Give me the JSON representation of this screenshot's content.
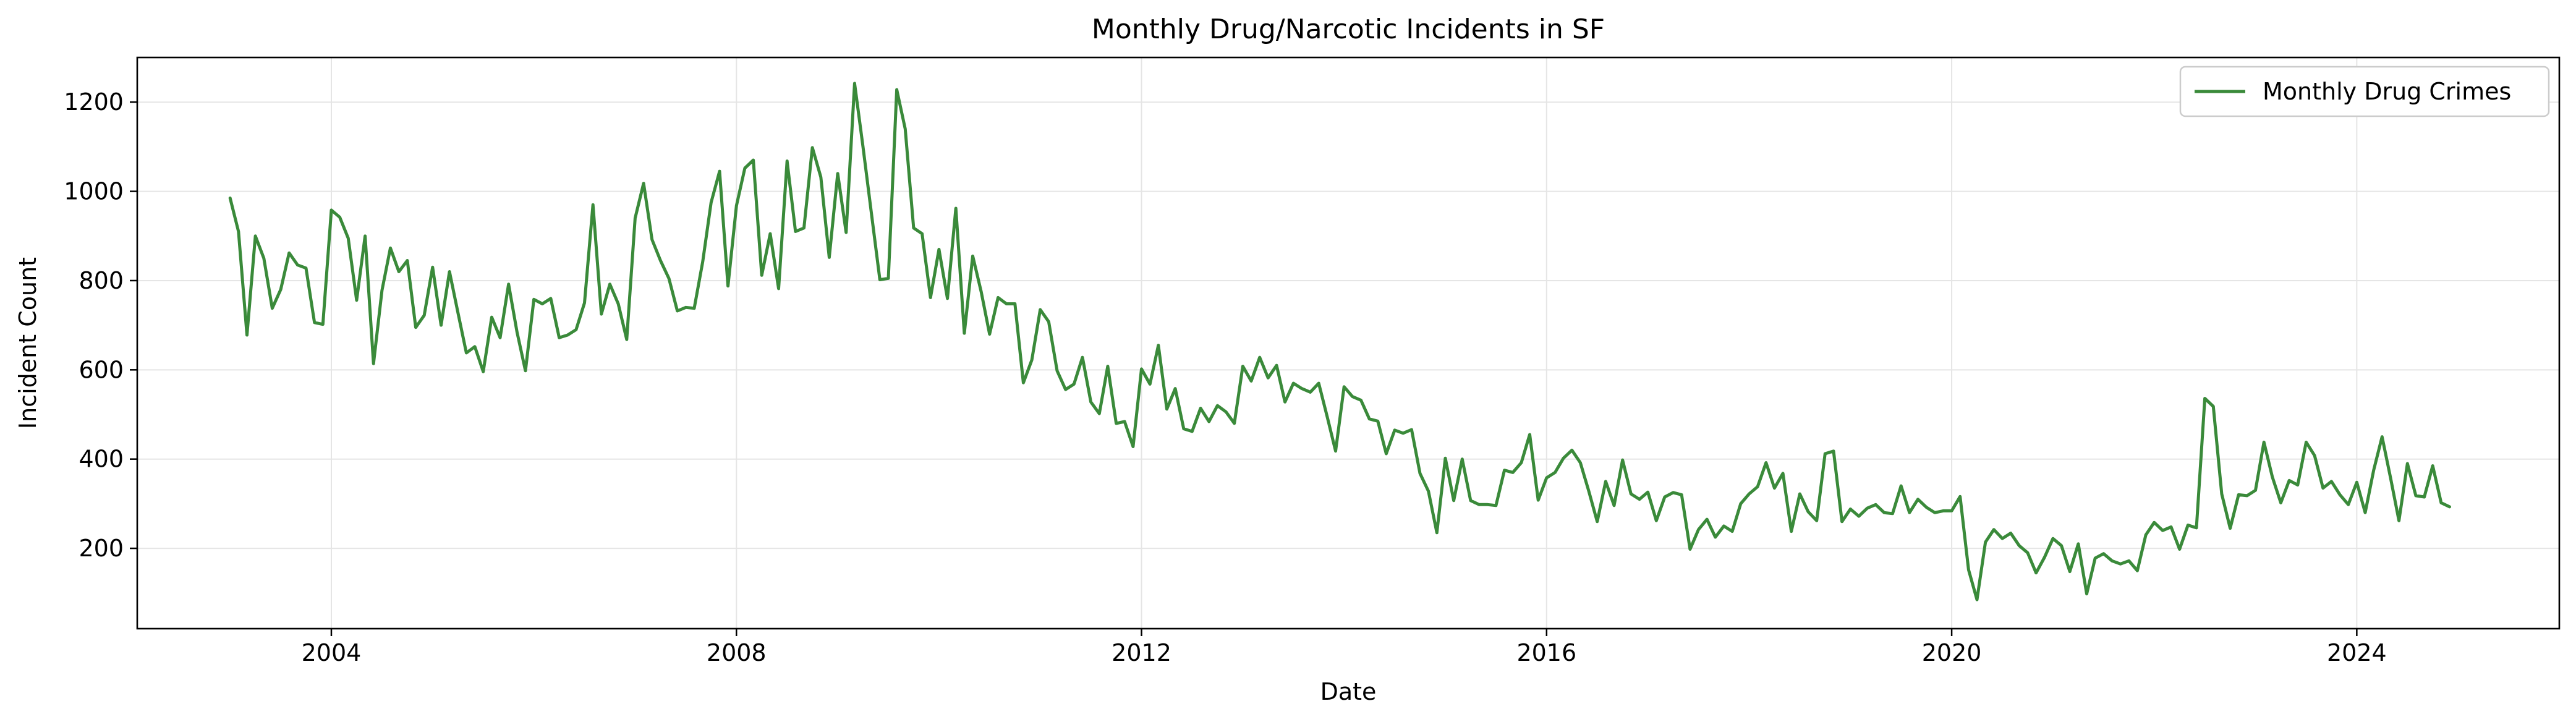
{
  "chart_data": {
    "type": "line",
    "title": "Monthly Drug/Narcotic Incidents in SF",
    "xlabel": "Date",
    "ylabel": "Incident Count",
    "xlim": [
      "2002-02-01",
      "2026-01-01"
    ],
    "ylim": [
      20,
      1300
    ],
    "x_ticks": [
      "2004",
      "2008",
      "2012",
      "2016",
      "2020",
      "2024"
    ],
    "y_ticks": [
      200,
      400,
      600,
      800,
      1000,
      1200
    ],
    "grid": true,
    "legend": "top-right",
    "colors": {
      "line": "#3a8a3a",
      "axes": "#000000",
      "grid": "#e5e5e5"
    },
    "series": [
      {
        "name": "Monthly Drug Crimes",
        "x": [
          "2003-01",
          "2003-02",
          "2003-03",
          "2003-04",
          "2003-05",
          "2003-06",
          "2003-07",
          "2003-08",
          "2003-09",
          "2003-10",
          "2003-11",
          "2003-12",
          "2004-01",
          "2004-02",
          "2004-03",
          "2004-04",
          "2004-05",
          "2004-06",
          "2004-07",
          "2004-08",
          "2004-09",
          "2004-10",
          "2004-11",
          "2004-12",
          "2005-01",
          "2005-02",
          "2005-03",
          "2005-04",
          "2005-05",
          "2005-06",
          "2005-07",
          "2005-08",
          "2005-09",
          "2005-10",
          "2005-11",
          "2005-12",
          "2006-01",
          "2006-02",
          "2006-03",
          "2006-04",
          "2006-05",
          "2006-06",
          "2006-07",
          "2006-08",
          "2006-09",
          "2006-10",
          "2006-11",
          "2006-12",
          "2007-01",
          "2007-02",
          "2007-03",
          "2007-04",
          "2007-05",
          "2007-06",
          "2007-07",
          "2007-08",
          "2007-09",
          "2007-10",
          "2007-11",
          "2007-12",
          "2008-01",
          "2008-02",
          "2008-03",
          "2008-04",
          "2008-05",
          "2008-06",
          "2008-07",
          "2008-08",
          "2008-09",
          "2008-10",
          "2008-11",
          "2008-12",
          "2009-01",
          "2009-02",
          "2009-03",
          "2009-04",
          "2009-05",
          "2009-06",
          "2009-07",
          "2009-08",
          "2009-09",
          "2009-10",
          "2009-11",
          "2009-12",
          "2010-01",
          "2010-02",
          "2010-03",
          "2010-04",
          "2010-05",
          "2010-06",
          "2010-07",
          "2010-08",
          "2010-09",
          "2010-10",
          "2010-11",
          "2010-12",
          "2011-01",
          "2011-02",
          "2011-03",
          "2011-04",
          "2011-05",
          "2011-06",
          "2011-07",
          "2011-08",
          "2011-09",
          "2011-10",
          "2011-11",
          "2011-12",
          "2012-01",
          "2012-02",
          "2012-03",
          "2012-04",
          "2012-05",
          "2012-06",
          "2012-07",
          "2012-08",
          "2012-09",
          "2012-10",
          "2012-11",
          "2012-12",
          "2013-01",
          "2013-02",
          "2013-03",
          "2013-04",
          "2013-05",
          "2013-06",
          "2013-07",
          "2013-08",
          "2013-09",
          "2013-10",
          "2013-11",
          "2013-12",
          "2014-01",
          "2014-02",
          "2014-03",
          "2014-04",
          "2014-05",
          "2014-06",
          "2014-07",
          "2014-08",
          "2014-09",
          "2014-10",
          "2014-11",
          "2014-12",
          "2015-01",
          "2015-02",
          "2015-03",
          "2015-04",
          "2015-05",
          "2015-06",
          "2015-07",
          "2015-08",
          "2015-09",
          "2015-10",
          "2015-11",
          "2015-12",
          "2016-01",
          "2016-02",
          "2016-03",
          "2016-04",
          "2016-05",
          "2016-06",
          "2016-07",
          "2016-08",
          "2016-09",
          "2016-10",
          "2016-11",
          "2016-12",
          "2017-01",
          "2017-02",
          "2017-03",
          "2017-04",
          "2017-05",
          "2017-06",
          "2017-07",
          "2017-08",
          "2017-09",
          "2017-10",
          "2017-11",
          "2017-12",
          "2018-01",
          "2018-02",
          "2018-03",
          "2018-04",
          "2018-05",
          "2018-06",
          "2018-07",
          "2018-08",
          "2018-09",
          "2018-10",
          "2018-11",
          "2018-12",
          "2019-01",
          "2019-02",
          "2019-03",
          "2019-04",
          "2019-05",
          "2019-06",
          "2019-07",
          "2019-08",
          "2019-09",
          "2019-10",
          "2019-11",
          "2019-12",
          "2020-01",
          "2020-02",
          "2020-03",
          "2020-04",
          "2020-05",
          "2020-06",
          "2020-07",
          "2020-08",
          "2020-09",
          "2020-10",
          "2020-11",
          "2020-12",
          "2021-01",
          "2021-02",
          "2021-03",
          "2021-04",
          "2021-05",
          "2021-06",
          "2021-07",
          "2021-08",
          "2021-09",
          "2021-10",
          "2021-11",
          "2021-12",
          "2022-01",
          "2022-02",
          "2022-03",
          "2022-04",
          "2022-05",
          "2022-06",
          "2022-07",
          "2022-08",
          "2022-09",
          "2022-10",
          "2022-11",
          "2022-12",
          "2023-01",
          "2023-02",
          "2023-03",
          "2023-04",
          "2023-05",
          "2023-06",
          "2023-07",
          "2023-08",
          "2023-09",
          "2023-10",
          "2023-11",
          "2023-12",
          "2024-01",
          "2024-02",
          "2024-03",
          "2024-04",
          "2024-05",
          "2024-06",
          "2024-07",
          "2024-08",
          "2024-09",
          "2024-10",
          "2024-11",
          "2024-12"
        ],
        "values": [
          985,
          910,
          678,
          900,
          850,
          738,
          780,
          862,
          835,
          828,
          706,
          702,
          958,
          942,
          895,
          756,
          900,
          614,
          778,
          873,
          820,
          845,
          695,
          722,
          830,
          700,
          820,
          728,
          638,
          652,
          596,
          718,
          672,
          792,
          685,
          598,
          758,
          748,
          760,
          672,
          678,
          690,
          750,
          970,
          725,
          792,
          748,
          668,
          940,
          1018,
          892,
          845,
          805,
          732,
          740,
          738,
          842,
          975,
          1045,
          788,
          968,
          1052,
          1070,
          812,
          905,
          782,
          1068,
          910,
          918,
          1098,
          1032,
          852,
          1040,
          908,
          1242,
          1100,
          950,
          802,
          805,
          1228,
          1140,
          918,
          905,
          762,
          870,
          760,
          962,
          682,
          855,
          775,
          680,
          762,
          748,
          748,
          571,
          622,
          735,
          708,
          598,
          556,
          568,
          628,
          528,
          502,
          608,
          480,
          484,
          428,
          602,
          568,
          655,
          512,
          558,
          468,
          462,
          514,
          484,
          520,
          506,
          480,
          608,
          575,
          628,
          582,
          610,
          528,
          570,
          558,
          550,
          570,
          495,
          418,
          562,
          540,
          532,
          490,
          485,
          412,
          465,
          458,
          466,
          368,
          328,
          235,
          402,
          307,
          400,
          307,
          298,
          298,
          296,
          375,
          370,
          392,
          455,
          308,
          358,
          370,
          402,
          420,
          392,
          328,
          260,
          350,
          296,
          398,
          322,
          310,
          326,
          262,
          315,
          325,
          320,
          198,
          242,
          265,
          225,
          250,
          238,
          300,
          322,
          338,
          392,
          335,
          368,
          238,
          322,
          282,
          262,
          412,
          418,
          260,
          288,
          272,
          290,
          298,
          280,
          278,
          340,
          280,
          310,
          292,
          280,
          284,
          284,
          316,
          152,
          85,
          214,
          242,
          222,
          234,
          206,
          190,
          145,
          180,
          222,
          206,
          148,
          210,
          98,
          178,
          188,
          172,
          165,
          172,
          150,
          230,
          258,
          240,
          248,
          198,
          252,
          246,
          536,
          518,
          322,
          245,
          320,
          318,
          330,
          438,
          360,
          302,
          352,
          342,
          438,
          408,
          335,
          350,
          320,
          298,
          348,
          280,
          375,
          450,
          358,
          262,
          390,
          318,
          315,
          385,
          302,
          293
        ]
      }
    ]
  }
}
